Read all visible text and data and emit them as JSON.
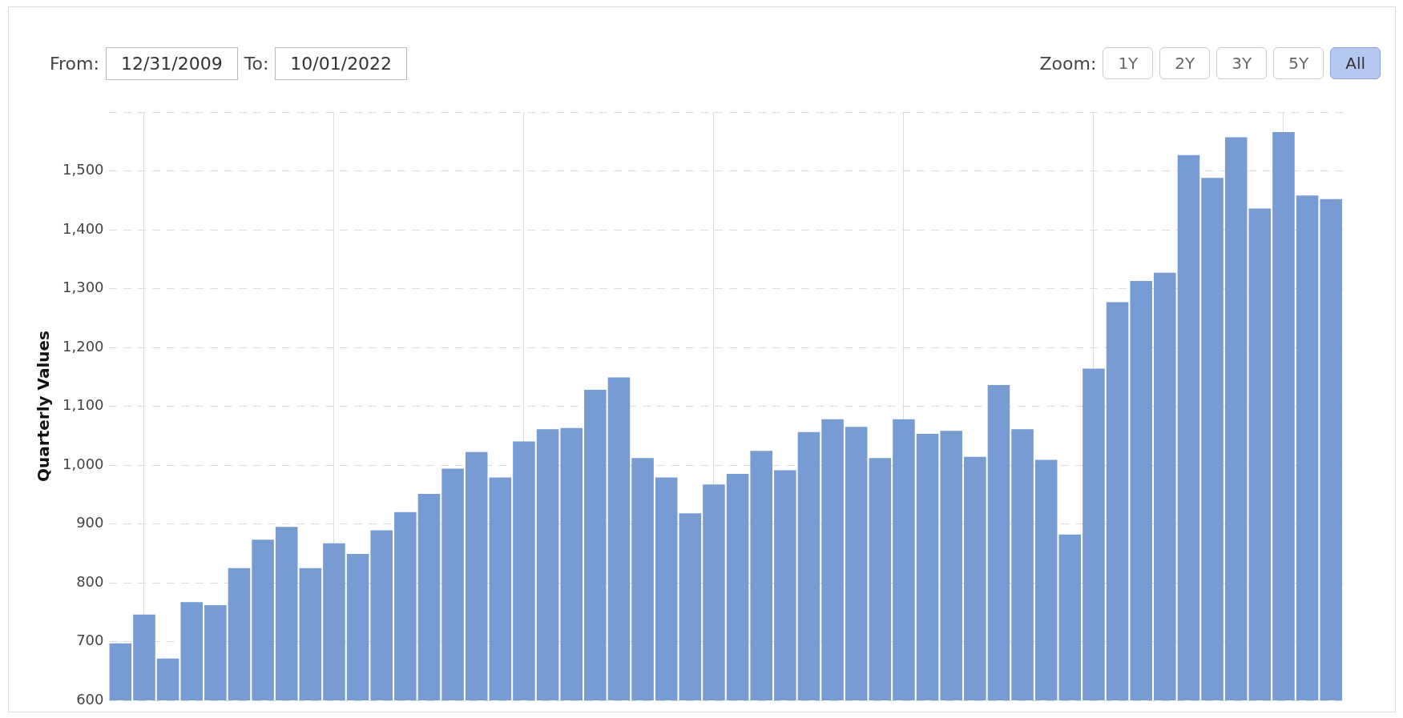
{
  "chart_data": {
    "type": "bar",
    "categories": [
      null,
      null,
      null,
      null,
      null,
      null,
      null,
      null,
      null,
      null,
      null,
      null,
      null,
      null,
      null,
      null,
      null,
      null,
      null,
      null,
      null,
      null,
      null,
      null,
      null,
      null,
      null,
      null,
      null,
      null,
      null,
      null,
      null,
      null,
      null,
      null,
      null,
      null,
      null,
      null,
      null,
      null,
      null,
      null,
      null,
      null,
      null,
      null,
      null,
      null,
      null,
      null
    ],
    "values": [
      697,
      746,
      671,
      767,
      762,
      825,
      873,
      895,
      825,
      867,
      849,
      889,
      920,
      951,
      994,
      1022,
      979,
      1040,
      1061,
      1063,
      1128,
      1149,
      1012,
      979,
      918,
      967,
      985,
      1024,
      991,
      1056,
      1078,
      1065,
      1012,
      1078,
      1053,
      1058,
      1014,
      1136,
      1061,
      1009,
      882,
      1164,
      1277,
      1313,
      1327,
      1527,
      1488,
      1557,
      1436,
      1566,
      1458,
      1452
    ],
    "color": "#769cd3",
    "ylabel": "Quarterly Values",
    "ylim": [
      600,
      1600
    ],
    "yticks": [
      600,
      700,
      800,
      900,
      {
        "value": 1000,
        "label": "1,000"
      },
      {
        "value": 1100,
        "label": "1,100"
      },
      {
        "value": 1200,
        "label": "1,200"
      },
      {
        "value": 1300,
        "label": "1,300"
      },
      {
        "value": 1400,
        "label": "1,400"
      },
      {
        "value": 1500,
        "label": "1,500"
      },
      {
        "value": 1600,
        "label": null
      }
    ],
    "grid": true,
    "annotations": [
      "From:",
      "12/31/2009",
      "To:",
      "10/01/2022",
      "Zoom:",
      "1Y",
      "2Y",
      "3Y",
      "5Y",
      "All"
    ]
  }
}
